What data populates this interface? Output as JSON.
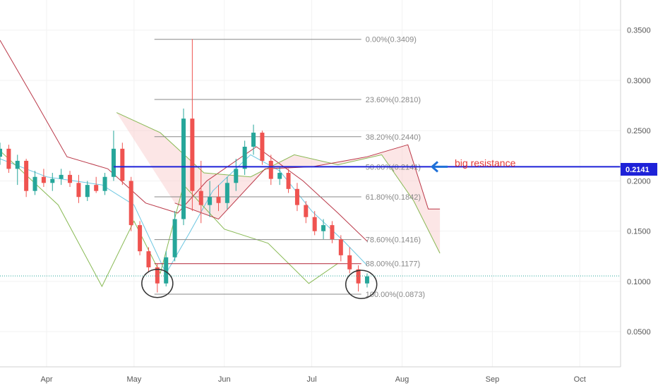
{
  "chart_data": {
    "type": "candlestick",
    "ylim": [
      0.015,
      0.38
    ],
    "x_range": [
      "2020-03-16",
      "2020-10-15"
    ],
    "y_ticks": [
      {
        "value": 0.05,
        "label": "0.0500"
      },
      {
        "value": 0.1,
        "label": "0.1000"
      },
      {
        "value": 0.15,
        "label": "0.1500"
      },
      {
        "value": 0.2,
        "label": "0.2000"
      },
      {
        "value": 0.25,
        "label": "0.2500"
      },
      {
        "value": 0.3,
        "label": "0.3000"
      },
      {
        "value": 0.35,
        "label": "0.3500"
      }
    ],
    "x_ticks": [
      {
        "date": "2020-04-01",
        "label": "Apr"
      },
      {
        "date": "2020-05-01",
        "label": "May"
      },
      {
        "date": "2020-06-01",
        "label": "Jun"
      },
      {
        "date": "2020-07-01",
        "label": "Jul"
      },
      {
        "date": "2020-08-01",
        "label": "Aug"
      },
      {
        "date": "2020-09-01",
        "label": "Sep"
      },
      {
        "date": "2020-10-01",
        "label": "Oct"
      }
    ],
    "current_price": {
      "value": 0.1055
    },
    "resistance": {
      "value": 0.2141,
      "label": "0.2141",
      "annotation": "big resistance"
    },
    "fibonacci": {
      "start": "2020-05-08",
      "end": "2020-07-18",
      "levels": [
        {
          "ratio": "0.00%",
          "value": 0.3409,
          "label": "0.00%(0.3409)"
        },
        {
          "ratio": "23.60%",
          "value": 0.281,
          "label": "23.60%(0.2810)"
        },
        {
          "ratio": "38.20%",
          "value": 0.244,
          "label": "38.20%(0.2440)"
        },
        {
          "ratio": "50.00%",
          "value": 0.2141,
          "label": "50.00%(0.2141)"
        },
        {
          "ratio": "61.80%",
          "value": 0.1842,
          "label": "61.80%(0.1842)"
        },
        {
          "ratio": "78.60%",
          "value": 0.1416,
          "label": "78.60%(0.1416)"
        },
        {
          "ratio": "88.00%",
          "value": 0.1177,
          "label": "88.00%(0.1177)"
        },
        {
          "ratio": "100.00%",
          "value": 0.0873,
          "label": "100.00%(0.0873)"
        }
      ]
    },
    "candles": [
      [
        "2020-03-16",
        0.224,
        0.238,
        0.216,
        0.232
      ],
      [
        "2020-03-19",
        0.232,
        0.236,
        0.208,
        0.212
      ],
      [
        "2020-03-22",
        0.212,
        0.226,
        0.196,
        0.22
      ],
      [
        "2020-03-25",
        0.22,
        0.222,
        0.184,
        0.19
      ],
      [
        "2020-03-28",
        0.19,
        0.21,
        0.186,
        0.204
      ],
      [
        "2020-03-31",
        0.204,
        0.212,
        0.194,
        0.198
      ],
      [
        "2020-04-03",
        0.198,
        0.208,
        0.19,
        0.202
      ],
      [
        "2020-04-06",
        0.202,
        0.212,
        0.196,
        0.206
      ],
      [
        "2020-04-09",
        0.206,
        0.21,
        0.194,
        0.198
      ],
      [
        "2020-04-12",
        0.198,
        0.206,
        0.178,
        0.184
      ],
      [
        "2020-04-15",
        0.184,
        0.2,
        0.18,
        0.196
      ],
      [
        "2020-04-18",
        0.196,
        0.204,
        0.188,
        0.19
      ],
      [
        "2020-04-21",
        0.19,
        0.208,
        0.186,
        0.204
      ],
      [
        "2020-04-24",
        0.204,
        0.25,
        0.2,
        0.232
      ],
      [
        "2020-04-27",
        0.232,
        0.238,
        0.196,
        0.2
      ],
      [
        "2020-04-30",
        0.2,
        0.204,
        0.15,
        0.156
      ],
      [
        "2020-05-03",
        0.156,
        0.16,
        0.126,
        0.13
      ],
      [
        "2020-05-06",
        0.13,
        0.134,
        0.11,
        0.114
      ],
      [
        "2020-05-09",
        0.114,
        0.118,
        0.089,
        0.098
      ],
      [
        "2020-05-12",
        0.098,
        0.13,
        0.095,
        0.124
      ],
      [
        "2020-05-15",
        0.124,
        0.17,
        0.12,
        0.162
      ],
      [
        "2020-05-18",
        0.162,
        0.272,
        0.156,
        0.262
      ],
      [
        "2020-05-21",
        0.262,
        0.341,
        0.17,
        0.19
      ],
      [
        "2020-05-24",
        0.19,
        0.22,
        0.158,
        0.176
      ],
      [
        "2020-05-27",
        0.176,
        0.2,
        0.164,
        0.184
      ],
      [
        "2020-05-30",
        0.184,
        0.196,
        0.17,
        0.178
      ],
      [
        "2020-06-02",
        0.178,
        0.204,
        0.172,
        0.198
      ],
      [
        "2020-06-05",
        0.198,
        0.222,
        0.19,
        0.212
      ],
      [
        "2020-06-08",
        0.212,
        0.24,
        0.206,
        0.234
      ],
      [
        "2020-06-11",
        0.234,
        0.256,
        0.226,
        0.248
      ],
      [
        "2020-06-14",
        0.248,
        0.25,
        0.216,
        0.22
      ],
      [
        "2020-06-17",
        0.22,
        0.226,
        0.196,
        0.202
      ],
      [
        "2020-06-20",
        0.202,
        0.214,
        0.196,
        0.208
      ],
      [
        "2020-06-23",
        0.208,
        0.212,
        0.188,
        0.192
      ],
      [
        "2020-06-26",
        0.192,
        0.198,
        0.17,
        0.176
      ],
      [
        "2020-06-29",
        0.176,
        0.18,
        0.158,
        0.164
      ],
      [
        "2020-07-02",
        0.164,
        0.17,
        0.146,
        0.15
      ],
      [
        "2020-07-05",
        0.15,
        0.162,
        0.142,
        0.156
      ],
      [
        "2020-07-08",
        0.156,
        0.16,
        0.138,
        0.142
      ],
      [
        "2020-07-11",
        0.142,
        0.146,
        0.12,
        0.126
      ],
      [
        "2020-07-14",
        0.126,
        0.134,
        0.108,
        0.112
      ],
      [
        "2020-07-17",
        0.112,
        0.116,
        0.09,
        0.098
      ],
      [
        "2020-07-20",
        0.098,
        0.108,
        0.094,
        0.105
      ]
    ],
    "series": [
      {
        "color": "#5bc0de",
        "points": [
          [
            "2020-03-16",
            0.222
          ],
          [
            "2020-04-01",
            0.204
          ],
          [
            "2020-04-20",
            0.196
          ],
          [
            "2020-05-01",
            0.176
          ],
          [
            "2020-05-12",
            0.108
          ],
          [
            "2020-05-20",
            0.148
          ],
          [
            "2020-05-28",
            0.19
          ],
          [
            "2020-06-10",
            0.226
          ],
          [
            "2020-06-20",
            0.21
          ],
          [
            "2020-07-01",
            0.17
          ],
          [
            "2020-07-12",
            0.14
          ],
          [
            "2020-07-20",
            0.116
          ]
        ]
      },
      {
        "color": "#b22234",
        "points": [
          [
            "2020-03-16",
            0.34
          ],
          [
            "2020-03-28",
            0.28
          ],
          [
            "2020-04-08",
            0.224
          ],
          [
            "2020-04-22",
            0.212
          ],
          [
            "2020-05-05",
            0.178
          ],
          [
            "2020-05-16",
            0.168
          ],
          [
            "2020-05-26",
            0.2
          ],
          [
            "2020-06-12",
            0.234
          ],
          [
            "2020-06-28",
            0.2
          ],
          [
            "2020-07-10",
            0.168
          ],
          [
            "2020-07-20",
            0.14
          ]
        ]
      },
      {
        "color": "#7cb342",
        "points": [
          [
            "2020-03-16",
            0.23
          ],
          [
            "2020-04-05",
            0.176
          ],
          [
            "2020-04-20",
            0.095
          ],
          [
            "2020-05-01",
            0.16
          ],
          [
            "2020-05-10",
            0.108
          ],
          [
            "2020-05-18",
            0.196
          ],
          [
            "2020-06-01",
            0.152
          ],
          [
            "2020-06-16",
            0.138
          ],
          [
            "2020-06-30",
            0.098
          ],
          [
            "2020-07-10",
            0.118
          ]
        ]
      },
      {
        "color": "#7cb342",
        "points": [
          [
            "2020-04-25",
            0.268
          ],
          [
            "2020-05-10",
            0.248
          ],
          [
            "2020-05-25",
            0.208
          ],
          [
            "2020-06-10",
            0.204
          ],
          [
            "2020-06-25",
            0.226
          ],
          [
            "2020-07-10",
            0.216
          ],
          [
            "2020-07-25",
            0.226
          ],
          [
            "2020-08-05",
            0.18
          ],
          [
            "2020-08-14",
            0.128
          ]
        ]
      },
      {
        "color": "#b22234",
        "points": [
          [
            "2020-05-15",
            0.178
          ],
          [
            "2020-05-30",
            0.162
          ],
          [
            "2020-06-15",
            0.212
          ],
          [
            "2020-07-01",
            0.214
          ],
          [
            "2020-07-20",
            0.224
          ],
          [
            "2020-08-03",
            0.236
          ],
          [
            "2020-08-10",
            0.172
          ],
          [
            "2020-08-14",
            0.172
          ]
        ]
      }
    ]
  }
}
